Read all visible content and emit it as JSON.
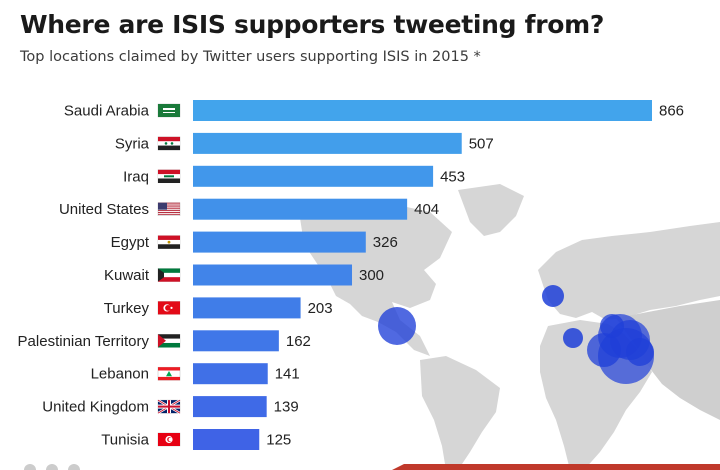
{
  "header": {
    "title": "Where are ISIS supporters tweeting from?",
    "subtitle": "Top locations claimed by Twitter users supporting ISIS in 2015 *"
  },
  "colors": {
    "bar_top": "#42a4ec",
    "bar_bottom": "#3f63e6",
    "map_land": "#d6d6d6",
    "map_land_dark": "#b8b8b8",
    "bubble": "#1f3fd8",
    "accent_red": "#c0392b"
  },
  "chart_data": {
    "type": "bar",
    "orientation": "horizontal",
    "categories": [
      "Saudi Arabia",
      "Syria",
      "Iraq",
      "United States",
      "Egypt",
      "Kuwait",
      "Turkey",
      "Palestinian Territory",
      "Lebanon",
      "United Kingdom",
      "Tunisia"
    ],
    "values": [
      866,
      507,
      453,
      404,
      326,
      300,
      203,
      162,
      141,
      139,
      125
    ],
    "flag_icons": [
      "flag-saudi-arabia-icon",
      "flag-syria-icon",
      "flag-iraq-icon",
      "flag-united-states-icon",
      "flag-egypt-icon",
      "flag-kuwait-icon",
      "flag-turkey-icon",
      "flag-palestine-icon",
      "flag-lebanon-icon",
      "flag-united-kingdom-icon",
      "flag-tunisia-icon"
    ],
    "xlim": [
      0,
      866
    ],
    "grid": false,
    "legend": "none",
    "background": "world map with blue bubbles"
  }
}
